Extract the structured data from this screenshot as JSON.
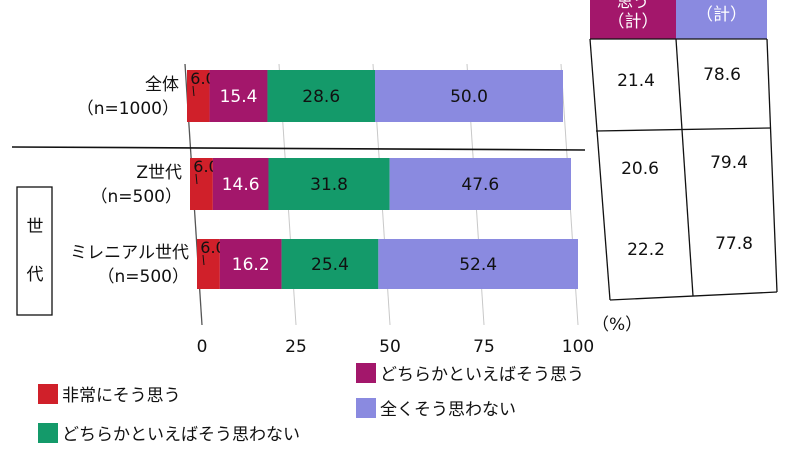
{
  "chart_data": {
    "type": "bar",
    "orientation": "horizontal",
    "stacked": true,
    "categories": [
      {
        "label_lines": [
          "全体",
          "（n=1000）"
        ]
      },
      {
        "label_lines": [
          "Z世代",
          "（n=500）"
        ]
      },
      {
        "label_lines": [
          "ミレニアル世代",
          "（n=500）"
        ]
      }
    ],
    "group_label_chars": [
      "世",
      "代"
    ],
    "series": [
      {
        "name": "非常にそう思う",
        "color": "#d0202a",
        "values": [
          6.0,
          6.0,
          6.0
        ]
      },
      {
        "name": "どちらかといえばそう思う",
        "color": "#a3176b",
        "values": [
          15.4,
          14.6,
          16.2
        ]
      },
      {
        "name": "どちらかといえばそう思わない",
        "color": "#149a6a",
        "values": [
          28.6,
          31.8,
          25.4
        ]
      },
      {
        "name": "全くそう思わない",
        "color": "#8a8ae0",
        "values": [
          50.0,
          47.6,
          52.4
        ]
      }
    ],
    "xlim": [
      0,
      100
    ],
    "x_ticks": [
      "0",
      "25",
      "50",
      "75",
      "100"
    ],
    "x_unit": "（%）",
    "grid": true,
    "legend_position": "bottom",
    "table": {
      "header_lines": [
        [
          "（計）"
        ],
        [
          "（計）"
        ]
      ],
      "header_partial": [
        "思う",
        ""
      ],
      "header_colors": [
        "#a3176b",
        "#8a8ae0"
      ],
      "rows": [
        [
          "21.4",
          "78.6"
        ],
        [
          "20.6",
          "79.4"
        ],
        [
          "22.2",
          "77.8"
        ]
      ]
    }
  }
}
